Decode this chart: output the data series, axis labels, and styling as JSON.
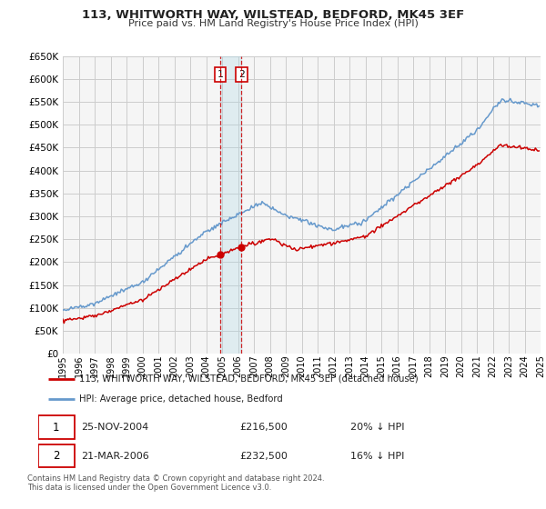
{
  "title": "113, WHITWORTH WAY, WILSTEAD, BEDFORD, MK45 3EF",
  "subtitle": "Price paid vs. HM Land Registry's House Price Index (HPI)",
  "legend_line1": "113, WHITWORTH WAY, WILSTEAD, BEDFORD, MK45 3EF (detached house)",
  "legend_line2": "HPI: Average price, detached house, Bedford",
  "footnote1": "Contains HM Land Registry data © Crown copyright and database right 2024.",
  "footnote2": "This data is licensed under the Open Government Licence v3.0.",
  "sale1_date": "25-NOV-2004",
  "sale1_price": "£216,500",
  "sale1_hpi": "20% ↓ HPI",
  "sale2_date": "21-MAR-2006",
  "sale2_price": "£232,500",
  "sale2_hpi": "16% ↓ HPI",
  "sale1_year": 2004.9,
  "sale1_value": 216500,
  "sale2_year": 2006.22,
  "sale2_value": 232500,
  "vline1_x": 2004.9,
  "vline2_x": 2006.22,
  "ylim": [
    0,
    650000
  ],
  "xlim_start": 1995,
  "xlim_end": 2025,
  "red_color": "#cc0000",
  "blue_color": "#6699cc",
  "grid_color": "#cccccc",
  "bg_color": "#ffffff",
  "plot_bg_color": "#f5f5f5"
}
